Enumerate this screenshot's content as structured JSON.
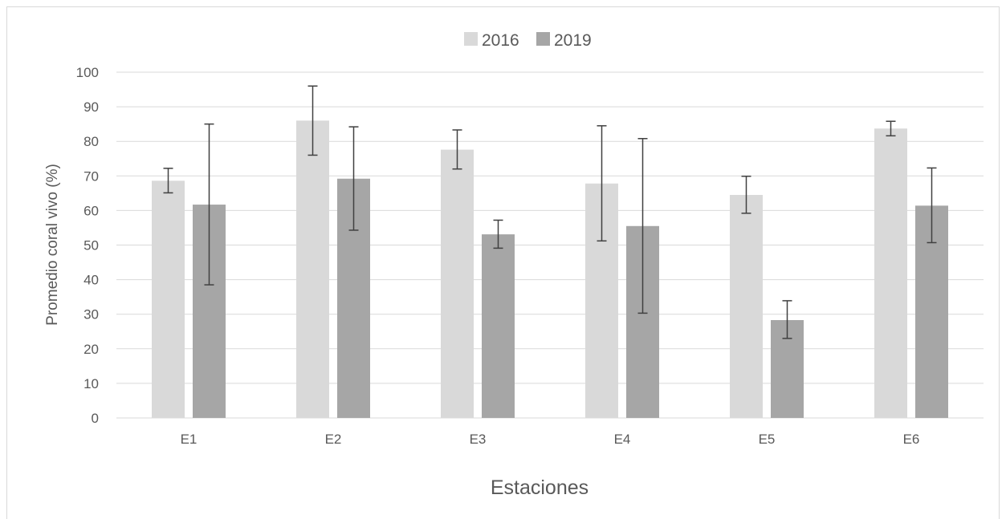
{
  "chart_data": {
    "type": "bar",
    "title": "",
    "xlabel": "Estaciones",
    "ylabel": "Promedio coral vivo (%)",
    "ylim": [
      0,
      100
    ],
    "y_ticks": [
      "0",
      "10",
      "20",
      "30",
      "40",
      "50",
      "60",
      "70",
      "80",
      "90",
      "100"
    ],
    "grid": true,
    "legend_position": "top-center",
    "categories": [
      "E1",
      "E2",
      "E3",
      "E4",
      "E5",
      "E6"
    ],
    "series": [
      {
        "name": "2016",
        "color": "#d9d9d9",
        "values": [
          68.6,
          86.0,
          77.6,
          67.8,
          64.5,
          83.7
        ],
        "err_low": [
          65.1,
          76.0,
          72.0,
          51.2,
          59.2,
          81.6
        ],
        "err_high": [
          72.2,
          96.0,
          83.3,
          84.5,
          69.9,
          85.8
        ]
      },
      {
        "name": "2019",
        "color": "#a6a6a6",
        "values": [
          61.7,
          69.2,
          53.1,
          55.5,
          28.3,
          61.4
        ],
        "err_low": [
          38.5,
          54.3,
          49.1,
          30.3,
          23.0,
          50.7
        ],
        "err_high": [
          85.0,
          84.2,
          57.2,
          80.8,
          33.9,
          72.3
        ]
      }
    ]
  }
}
